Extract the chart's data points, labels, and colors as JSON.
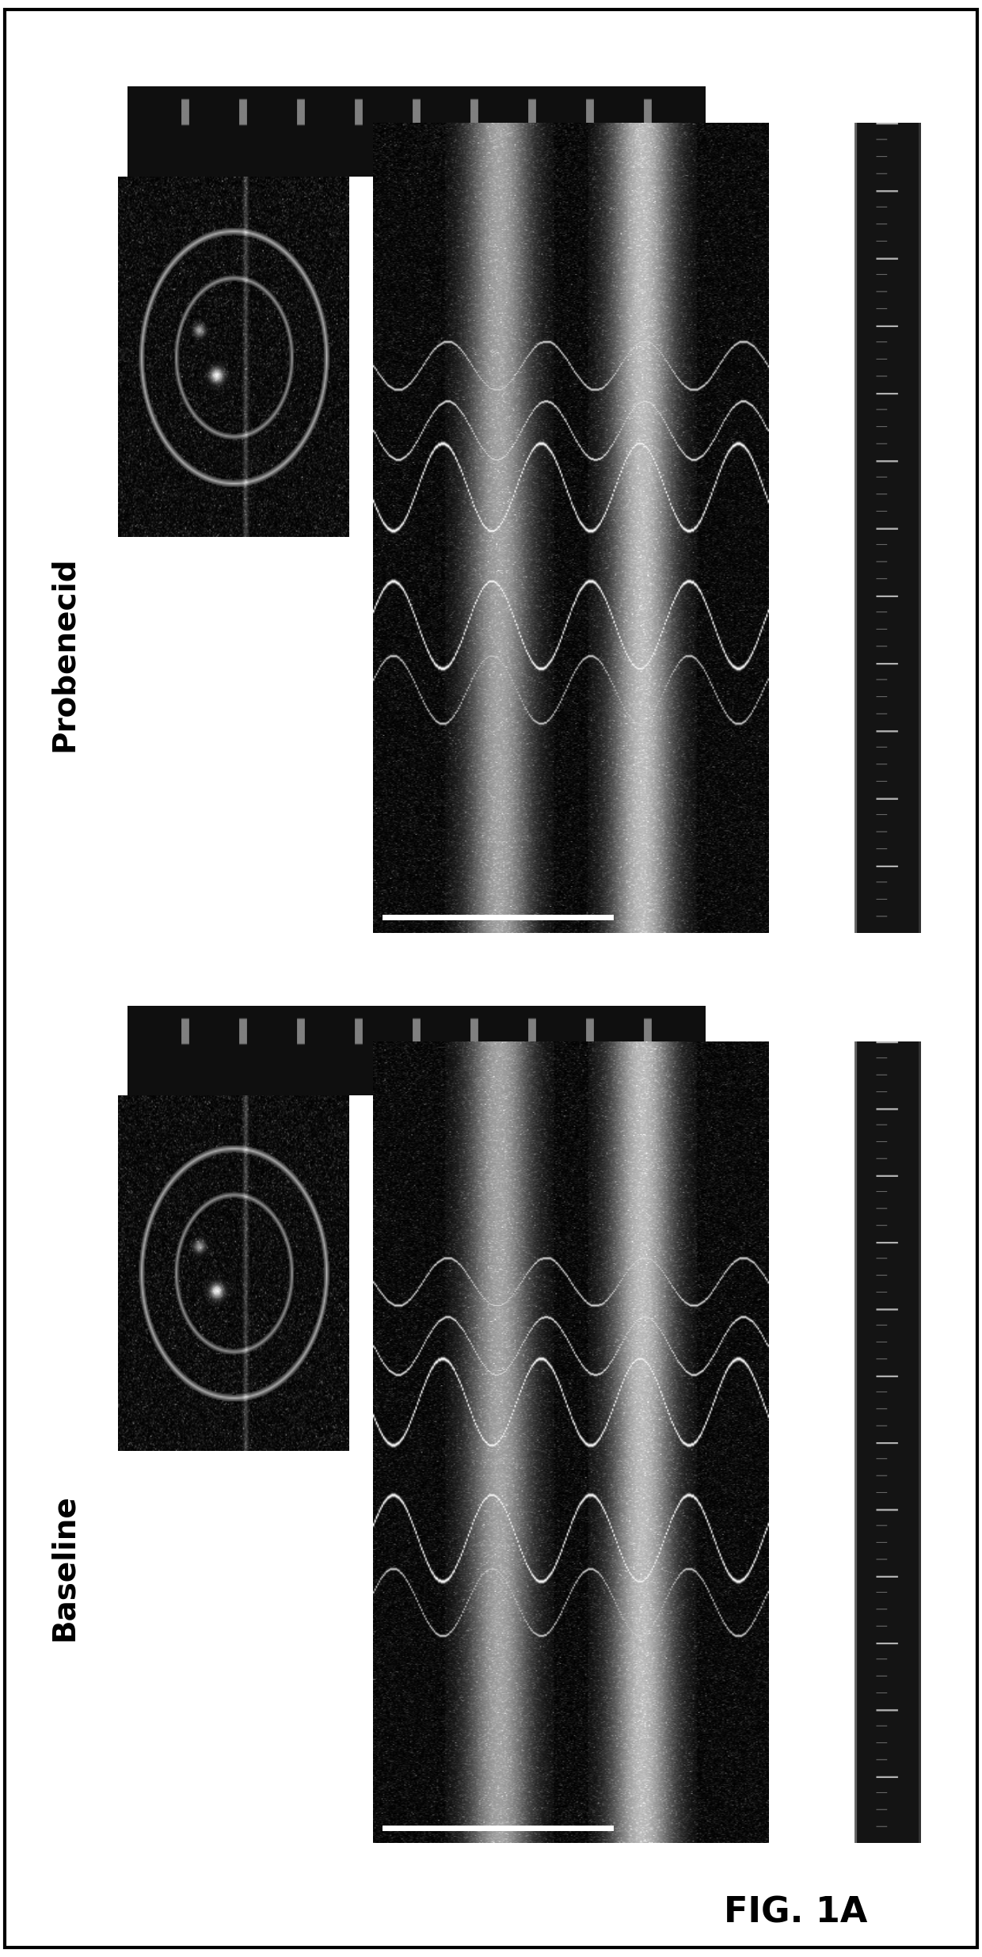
{
  "title": "FIG. 1A",
  "label_top": "Probenecid",
  "label_bottom": "Baseline",
  "bg_color": "#ffffff",
  "panel_bg": "#050505",
  "fig_width": 12.4,
  "fig_height": 24.71,
  "title_fontsize": 32,
  "label_fontsize": 28
}
